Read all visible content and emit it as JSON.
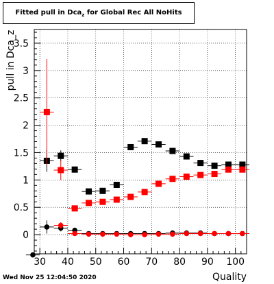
{
  "title": {
    "main": "Fitted pull in Dca",
    "subscript": "z",
    "suffix": " for Global Rec All NoHits"
  },
  "timestamp": "Wed Nov 25 12:04:50 2020",
  "chart_data": {
    "type": "scatter",
    "title": "Fitted pull in Dca_z for Global Rec All NoHits",
    "xlabel": "Quality",
    "ylabel": "pull in Dca_z",
    "xlim": [
      28,
      104
    ],
    "ylim": [
      -0.35,
      3.75
    ],
    "xticks": [
      30,
      40,
      50,
      60,
      70,
      80,
      90,
      100
    ],
    "yticks": [
      0,
      0.5,
      1,
      1.5,
      2,
      2.5,
      3,
      3.5
    ],
    "ytick_labels": [
      "0",
      "0.5",
      "1",
      "1.5",
      "2",
      "2.5",
      "3",
      "3.5"
    ],
    "grid": true,
    "series": [
      {
        "marker": "square",
        "color": "#000000",
        "points": [
          {
            "x": 32.5,
            "y": 1.35,
            "yerr": 0.2
          },
          {
            "x": 37.5,
            "y": 1.44,
            "yerr": 0.1
          },
          {
            "x": 42.5,
            "y": 1.19,
            "yerr": 0.04
          },
          {
            "x": 47.5,
            "y": 0.79,
            "yerr": 0.03
          },
          {
            "x": 52.5,
            "y": 0.8,
            "yerr": 0.03
          },
          {
            "x": 57.5,
            "y": 0.91,
            "yerr": 0.03
          },
          {
            "x": 62.5,
            "y": 1.6,
            "yerr": 0.03
          },
          {
            "x": 67.5,
            "y": 1.71,
            "yerr": 0.03
          },
          {
            "x": 72.5,
            "y": 1.65,
            "yerr": 0.03
          },
          {
            "x": 77.5,
            "y": 1.53,
            "yerr": 0.02
          },
          {
            "x": 82.5,
            "y": 1.43,
            "yerr": 0.02
          },
          {
            "x": 87.5,
            "y": 1.31,
            "yerr": 0.02
          },
          {
            "x": 92.5,
            "y": 1.26,
            "yerr": 0.02
          },
          {
            "x": 97.5,
            "y": 1.28,
            "yerr": 0.02
          },
          {
            "x": 102.5,
            "y": 1.28,
            "yerr": 0.02
          }
        ]
      },
      {
        "marker": "square",
        "color": "#ff0000",
        "points": [
          {
            "x": 32.5,
            "y": 2.24,
            "yerr": 0.97
          },
          {
            "x": 37.5,
            "y": 1.18,
            "yerr": 0.18
          },
          {
            "x": 42.5,
            "y": 0.48,
            "yerr": 0.03
          },
          {
            "x": 47.5,
            "y": 0.58,
            "yerr": 0.02
          },
          {
            "x": 52.5,
            "y": 0.6,
            "yerr": 0.02
          },
          {
            "x": 57.5,
            "y": 0.64,
            "yerr": 0.02
          },
          {
            "x": 62.5,
            "y": 0.69,
            "yerr": 0.02
          },
          {
            "x": 67.5,
            "y": 0.78,
            "yerr": 0.02
          },
          {
            "x": 72.5,
            "y": 0.93,
            "yerr": 0.02
          },
          {
            "x": 77.5,
            "y": 1.02,
            "yerr": 0.02
          },
          {
            "x": 82.5,
            "y": 1.06,
            "yerr": 0.02
          },
          {
            "x": 87.5,
            "y": 1.09,
            "yerr": 0.02
          },
          {
            "x": 92.5,
            "y": 1.11,
            "yerr": 0.02
          },
          {
            "x": 97.5,
            "y": 1.19,
            "yerr": 0.02
          },
          {
            "x": 102.5,
            "y": 1.19,
            "yerr": 0.02
          }
        ]
      },
      {
        "marker": "circle",
        "color": "#000000",
        "points": [
          {
            "x": 27.5,
            "y": -0.37,
            "yerr": 0.02
          },
          {
            "x": 32.5,
            "y": 0.14,
            "yerr": 0.12
          },
          {
            "x": 37.5,
            "y": 0.12,
            "yerr": 0.06
          },
          {
            "x": 42.5,
            "y": 0.08,
            "yerr": 0.03
          },
          {
            "x": 47.5,
            "y": 0.02,
            "yerr": 0.02
          },
          {
            "x": 52.5,
            "y": 0.02,
            "yerr": 0.02
          },
          {
            "x": 57.5,
            "y": 0.02,
            "yerr": 0.02
          },
          {
            "x": 62.5,
            "y": 0.02,
            "yerr": 0.02
          },
          {
            "x": 67.5,
            "y": 0.02,
            "yerr": 0.02
          },
          {
            "x": 72.5,
            "y": 0.02,
            "yerr": 0.02
          },
          {
            "x": 77.5,
            "y": 0.03,
            "yerr": 0.02
          },
          {
            "x": 82.5,
            "y": 0.03,
            "yerr": 0.02
          },
          {
            "x": 87.5,
            "y": 0.03,
            "yerr": 0.02
          },
          {
            "x": 92.5,
            "y": 0.02,
            "yerr": 0.02
          },
          {
            "x": 97.5,
            "y": 0.02,
            "yerr": 0.02
          },
          {
            "x": 102.5,
            "y": 0.02,
            "yerr": 0.02
          }
        ]
      },
      {
        "marker": "circle",
        "color": "#ff0000",
        "points": [
          {
            "x": 37.5,
            "y": 0.17,
            "yerr": 0.06
          },
          {
            "x": 42.5,
            "y": 0.02,
            "yerr": 0.02
          },
          {
            "x": 47.5,
            "y": 0.01,
            "yerr": 0.01
          },
          {
            "x": 52.5,
            "y": 0.01,
            "yerr": 0.01
          },
          {
            "x": 57.5,
            "y": 0.01,
            "yerr": 0.01
          },
          {
            "x": 62.5,
            "y": 0.0,
            "yerr": 0.01
          },
          {
            "x": 67.5,
            "y": 0.0,
            "yerr": 0.01
          },
          {
            "x": 72.5,
            "y": 0.01,
            "yerr": 0.01
          },
          {
            "x": 77.5,
            "y": 0.01,
            "yerr": 0.01
          },
          {
            "x": 82.5,
            "y": 0.02,
            "yerr": 0.01
          },
          {
            "x": 87.5,
            "y": 0.02,
            "yerr": 0.01
          },
          {
            "x": 92.5,
            "y": 0.02,
            "yerr": 0.01
          },
          {
            "x": 97.5,
            "y": 0.02,
            "yerr": 0.01
          },
          {
            "x": 102.5,
            "y": 0.02,
            "yerr": 0.01
          }
        ]
      }
    ]
  }
}
